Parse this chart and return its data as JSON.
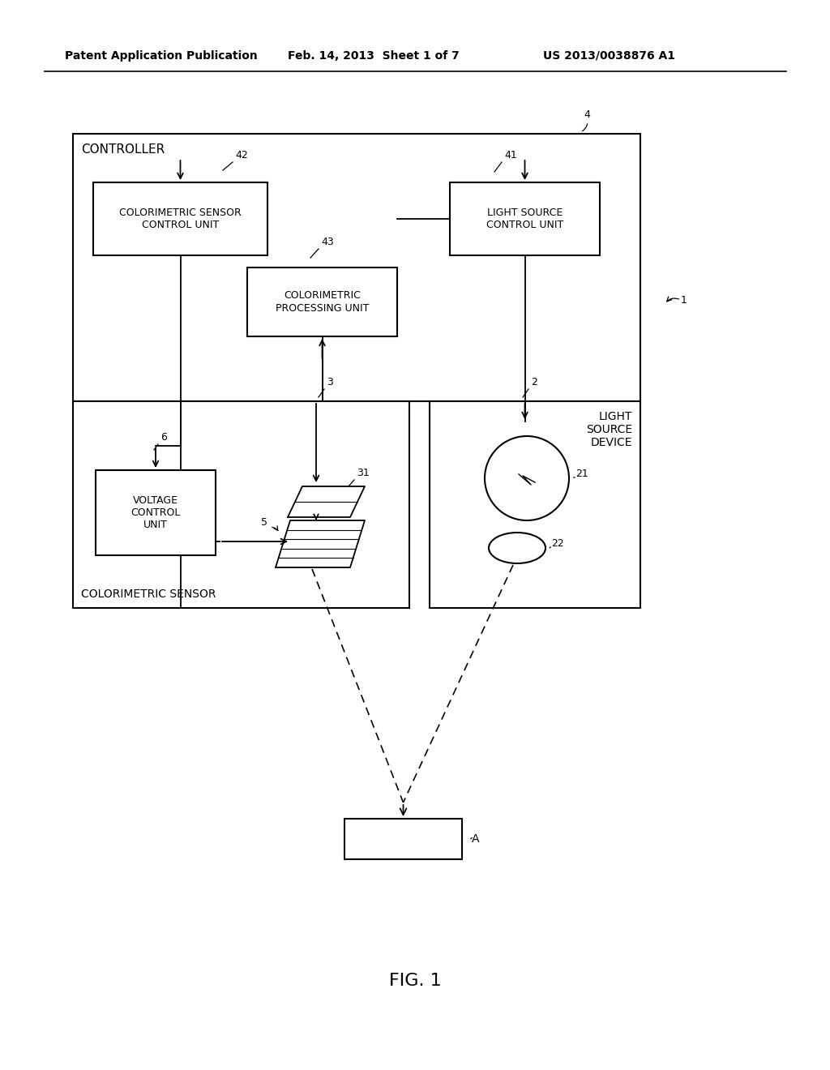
{
  "bg_color": "#ffffff",
  "header_left": "Patent Application Publication",
  "header_center": "Feb. 14, 2013  Sheet 1 of 7",
  "header_right": "US 2013/0038876 A1",
  "fig_label": "FIG. 1"
}
